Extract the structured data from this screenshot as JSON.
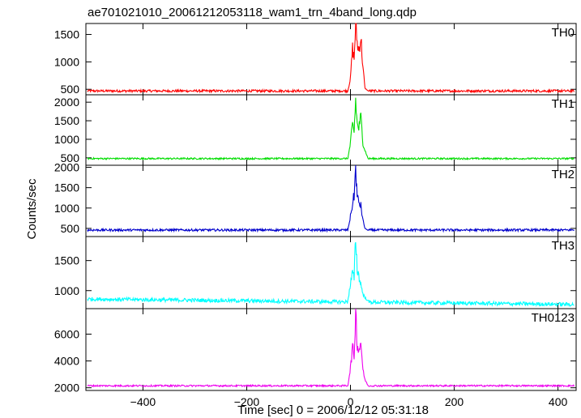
{
  "chart_data": {
    "type": "line",
    "title": "ae701021010_20061212053118_wam1_trn_4band_long.qdp",
    "ylabel": "Counts/sec",
    "xlabel": "Time [sec] 0 = 2006/12/12 05:31:18",
    "xlim": [
      -510,
      435
    ],
    "x_ticks": [
      -400,
      -200,
      0,
      200,
      400
    ],
    "x_tick_labels": [
      "−400",
      "−200",
      "0",
      "200",
      "400"
    ],
    "grid": false,
    "series": [
      {
        "name": "TH0",
        "color": "#ff0000",
        "ylim": [
          400,
          1700
        ],
        "y_ticks": [
          500,
          1000,
          1500
        ],
        "y_tick_labels": [
          "500",
          "1000",
          "1500"
        ],
        "baseline": 470,
        "noise": 22,
        "burst": [
          [
            -5,
            470
          ],
          [
            0,
            700
          ],
          [
            4,
            1250
          ],
          [
            7,
            1050
          ],
          [
            10,
            1700
          ],
          [
            13,
            1350
          ],
          [
            16,
            1200
          ],
          [
            20,
            1450
          ],
          [
            24,
            900
          ],
          [
            28,
            520
          ],
          [
            34,
            470
          ]
        ]
      },
      {
        "name": "TH1",
        "color": "#00dd00",
        "ylim": [
          300,
          2200
        ],
        "y_ticks": [
          500,
          1000,
          1500,
          2000
        ],
        "y_tick_labels": [
          "500",
          "1000",
          "1500",
          "2000"
        ],
        "baseline": 480,
        "noise": 22,
        "burst": [
          [
            -5,
            480
          ],
          [
            0,
            900
          ],
          [
            4,
            1400
          ],
          [
            7,
            1200
          ],
          [
            10,
            2050
          ],
          [
            13,
            1400
          ],
          [
            16,
            1300
          ],
          [
            20,
            1600
          ],
          [
            24,
            900
          ],
          [
            28,
            700
          ],
          [
            34,
            480
          ]
        ]
      },
      {
        "name": "TH2",
        "color": "#0000cc",
        "ylim": [
          300,
          2050
        ],
        "y_ticks": [
          500,
          1000,
          1500,
          2000
        ],
        "y_tick_labels": [
          "500",
          "1000",
          "1500",
          "2000"
        ],
        "baseline": 460,
        "noise": 28,
        "burst": [
          [
            -5,
            460
          ],
          [
            0,
            800
          ],
          [
            4,
            1100
          ],
          [
            7,
            1300
          ],
          [
            10,
            2000
          ],
          [
            13,
            1250
          ],
          [
            16,
            1150
          ],
          [
            20,
            1050
          ],
          [
            24,
            700
          ],
          [
            28,
            500
          ],
          [
            34,
            450
          ]
        ]
      },
      {
        "name": "TH3",
        "color": "#00ffff",
        "ylim": [
          700,
          1900
        ],
        "y_ticks": [
          1000,
          1500
        ],
        "y_tick_labels": [
          "1000",
          "1500"
        ],
        "baseline_start": 860,
        "baseline_end": 770,
        "noise": 32,
        "burst": [
          [
            -5,
            840
          ],
          [
            0,
            1100
          ],
          [
            4,
            1300
          ],
          [
            7,
            1200
          ],
          [
            10,
            1900
          ],
          [
            13,
            1350
          ],
          [
            16,
            1250
          ],
          [
            20,
            1100
          ],
          [
            24,
            950
          ],
          [
            28,
            880
          ],
          [
            34,
            830
          ]
        ]
      },
      {
        "name": "TH0123",
        "color": "#ee00ee",
        "ylim": [
          1800,
          7900
        ],
        "y_ticks": [
          2000,
          4000,
          6000
        ],
        "y_tick_labels": [
          "2000",
          "4000",
          "6000"
        ],
        "baseline": 2150,
        "noise": 60,
        "burst": [
          [
            -5,
            2150
          ],
          [
            0,
            3500
          ],
          [
            4,
            5000
          ],
          [
            7,
            4300
          ],
          [
            10,
            7800
          ],
          [
            13,
            5300
          ],
          [
            16,
            4700
          ],
          [
            20,
            5500
          ],
          [
            24,
            3300
          ],
          [
            28,
            2600
          ],
          [
            34,
            2150
          ]
        ]
      }
    ]
  }
}
